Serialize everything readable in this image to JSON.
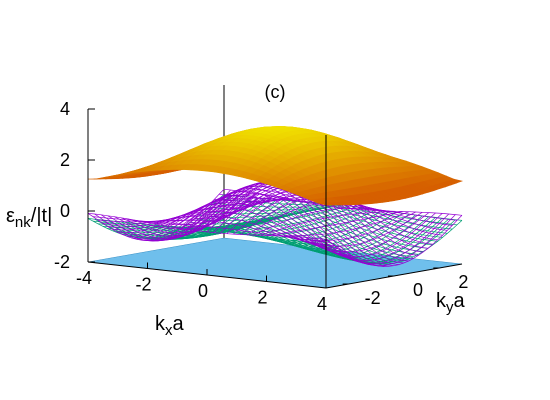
{
  "chart_data": {
    "type": "surface3d",
    "panel_label": "(c)",
    "z_axis_label": {
      "main": "ε",
      "subscript": "nk",
      "suffix": "/|t|"
    },
    "x_axis_label": {
      "main": "k",
      "subscript": "x",
      "suffix": "a"
    },
    "y_axis_label": {
      "main": "k",
      "subscript": "y",
      "suffix": "a"
    },
    "z_ticks": [
      "-2",
      "0",
      "2",
      "4"
    ],
    "x_ticks": [
      "-4",
      "-2",
      "0",
      "2",
      "4"
    ],
    "y_ticks": [
      "-2",
      "0",
      "2"
    ],
    "x_range": [
      -4,
      4
    ],
    "y_range": [
      -3,
      3
    ],
    "z_range": [
      -2,
      4
    ],
    "surfaces": [
      {
        "name": "",
        "style": "flat-plane",
        "value": -2,
        "color": "#56b4e9"
      },
      {
        "name": "",
        "style": "mesh",
        "color": "#009e73"
      },
      {
        "name": "",
        "style": "mesh",
        "color": "#9400d3"
      },
      {
        "name": "",
        "style": "solid",
        "color_low": "#d65f00",
        "color_high": "#f0e000"
      }
    ],
    "grid": false
  }
}
